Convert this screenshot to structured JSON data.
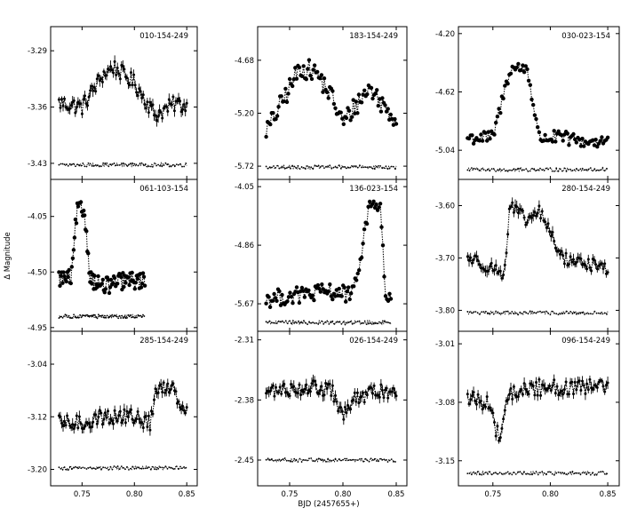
{
  "figure": {
    "xlabel": "BJD (2457655+)",
    "ylabel": "Δ Magnitude"
  },
  "chart_data": [
    {
      "type": "scatter",
      "title": "010-154-249",
      "yticks": [
        "-3.29",
        "-3.36",
        "-3.43"
      ],
      "xticks": [],
      "column": 0,
      "row": 0,
      "ylim": [
        -3.45,
        -3.26
      ],
      "xlim": [
        0.72,
        0.86
      ],
      "range": [
        0.728,
        0.85
      ],
      "target": [
        [
          0.73,
          -3.355
        ],
        [
          0.75,
          -3.36
        ],
        [
          0.77,
          -3.32
        ],
        [
          0.78,
          -3.31
        ],
        [
          0.8,
          -3.33
        ],
        [
          0.82,
          -3.37
        ],
        [
          0.84,
          -3.355
        ],
        [
          0.85,
          -3.36
        ]
      ],
      "comparison_level": -3.432,
      "noise": 0.01,
      "error_bars": true
    },
    {
      "type": "scatter",
      "title": "183-154-249",
      "yticks": [
        "-4.68",
        "-5.20",
        "-5.72"
      ],
      "xticks": [],
      "column": 1,
      "row": 0,
      "ylim": [
        -5.85,
        -4.35
      ],
      "xlim": [
        0.72,
        0.86
      ],
      "range": [
        0.728,
        0.85
      ],
      "target": [
        [
          0.73,
          -5.35
        ],
        [
          0.745,
          -5.05
        ],
        [
          0.76,
          -4.75
        ],
        [
          0.775,
          -4.8
        ],
        [
          0.79,
          -5.05
        ],
        [
          0.8,
          -5.3
        ],
        [
          0.81,
          -5.15
        ],
        [
          0.825,
          -4.95
        ],
        [
          0.84,
          -5.15
        ],
        [
          0.85,
          -5.25
        ]
      ],
      "comparison_level": -5.73,
      "noise": 0.1,
      "error_bars": false
    },
    {
      "type": "scatter",
      "title": "030-023-154",
      "yticks": [
        "-4.20",
        "-4.62",
        "-5.04"
      ],
      "xticks": [],
      "column": 2,
      "row": 0,
      "ylim": [
        -5.25,
        -4.15
      ],
      "xlim": [
        0.72,
        0.86
      ],
      "range": [
        0.728,
        0.85
      ],
      "target": [
        [
          0.73,
          -4.95
        ],
        [
          0.75,
          -4.95
        ],
        [
          0.765,
          -4.45
        ],
        [
          0.78,
          -4.45
        ],
        [
          0.79,
          -4.95
        ],
        [
          0.81,
          -4.95
        ],
        [
          0.83,
          -4.98
        ],
        [
          0.85,
          -4.97
        ]
      ],
      "comparison_level": -5.18,
      "noise": 0.05,
      "error_bars": false
    },
    {
      "type": "scatter",
      "title": "061-103-154",
      "yticks": [
        "-4.05",
        "-4.50",
        "-4.95"
      ],
      "xticks": [],
      "column": 0,
      "row": 1,
      "ylim": [
        -4.98,
        -3.75
      ],
      "xlim": [
        0.72,
        0.86
      ],
      "range": [
        0.728,
        0.81
      ],
      "target": [
        [
          0.73,
          -4.55
        ],
        [
          0.74,
          -4.55
        ],
        [
          0.745,
          -4.0
        ],
        [
          0.752,
          -4.0
        ],
        [
          0.758,
          -4.55
        ],
        [
          0.77,
          -4.62
        ],
        [
          0.79,
          -4.57
        ],
        [
          0.81,
          -4.57
        ]
      ],
      "comparison_level": -4.86,
      "noise": 0.07,
      "error_bars": false
    },
    {
      "type": "scatter",
      "title": "136-023-154",
      "yticks": [
        "-4.05",
        "-4.86",
        "-5.67"
      ],
      "xticks": [],
      "column": 1,
      "row": 1,
      "ylim": [
        -6.05,
        -3.95
      ],
      "xlim": [
        0.72,
        0.86
      ],
      "range": [
        0.728,
        0.845
      ],
      "target": [
        [
          0.73,
          -5.6
        ],
        [
          0.76,
          -5.55
        ],
        [
          0.79,
          -5.5
        ],
        [
          0.81,
          -5.55
        ],
        [
          0.825,
          -4.3
        ],
        [
          0.835,
          -4.3
        ],
        [
          0.84,
          -5.55
        ],
        [
          0.845,
          -5.65
        ]
      ],
      "comparison_level": -5.93,
      "noise": 0.12,
      "error_bars": false
    },
    {
      "type": "scatter",
      "title": "280-154-249",
      "yticks": [
        "-3.60",
        "-3.70",
        "-3.80"
      ],
      "xticks": [],
      "column": 2,
      "row": 1,
      "ylim": [
        -3.84,
        -3.55
      ],
      "xlim": [
        0.72,
        0.86
      ],
      "range": [
        0.728,
        0.85
      ],
      "target": [
        [
          0.73,
          -3.7
        ],
        [
          0.76,
          -3.73
        ],
        [
          0.765,
          -3.6
        ],
        [
          0.78,
          -3.63
        ],
        [
          0.79,
          -3.61
        ],
        [
          0.8,
          -3.65
        ],
        [
          0.81,
          -3.7
        ],
        [
          0.85,
          -3.72
        ]
      ],
      "comparison_level": -3.805,
      "noise": 0.012,
      "error_bars": true
    },
    {
      "type": "scatter",
      "title": "285-154-249",
      "yticks": [
        "-3.04",
        "-3.12",
        "-3.20"
      ],
      "xticks": [
        "0.75",
        "0.80",
        "0.85"
      ],
      "column": 0,
      "row": 2,
      "ylim": [
        -3.225,
        -2.99
      ],
      "xlim": [
        0.72,
        0.86
      ],
      "range": [
        0.728,
        0.85
      ],
      "target": [
        [
          0.73,
          -3.13
        ],
        [
          0.75,
          -3.13
        ],
        [
          0.77,
          -3.12
        ],
        [
          0.8,
          -3.12
        ],
        [
          0.815,
          -3.13
        ],
        [
          0.82,
          -3.085
        ],
        [
          0.835,
          -3.07
        ],
        [
          0.845,
          -3.1
        ],
        [
          0.85,
          -3.11
        ]
      ],
      "comparison_level": -3.198,
      "noise": 0.012,
      "error_bars": true
    },
    {
      "type": "scatter",
      "title": "026-154-249",
      "yticks": [
        "-2.31",
        "-2.38",
        "-2.45"
      ],
      "xticks": [
        "0.75",
        "0.80",
        "0.85"
      ],
      "column": 1,
      "row": 2,
      "ylim": [
        -2.48,
        -2.3
      ],
      "xlim": [
        0.72,
        0.86
      ],
      "range": [
        0.728,
        0.85
      ],
      "target": [
        [
          0.73,
          -2.37
        ],
        [
          0.77,
          -2.365
        ],
        [
          0.79,
          -2.37
        ],
        [
          0.8,
          -2.4
        ],
        [
          0.81,
          -2.38
        ],
        [
          0.83,
          -2.37
        ],
        [
          0.85,
          -2.37
        ]
      ],
      "comparison_level": -2.45,
      "noise": 0.008,
      "error_bars": true
    },
    {
      "type": "scatter",
      "title": "096-154-249",
      "yticks": [
        "-3.01",
        "-3.08",
        "-3.15"
      ],
      "xticks": [
        "0.75",
        "0.80",
        "0.85"
      ],
      "column": 2,
      "row": 2,
      "ylim": [
        -3.18,
        -2.995
      ],
      "xlim": [
        0.72,
        0.86
      ],
      "range": [
        0.728,
        0.85
      ],
      "target": [
        [
          0.73,
          -3.075
        ],
        [
          0.745,
          -3.08
        ],
        [
          0.755,
          -3.12
        ],
        [
          0.765,
          -3.07
        ],
        [
          0.78,
          -3.065
        ],
        [
          0.8,
          -3.06
        ],
        [
          0.82,
          -3.065
        ],
        [
          0.85,
          -3.06
        ]
      ],
      "comparison_level": -3.165,
      "noise": 0.01,
      "error_bars": true
    }
  ]
}
